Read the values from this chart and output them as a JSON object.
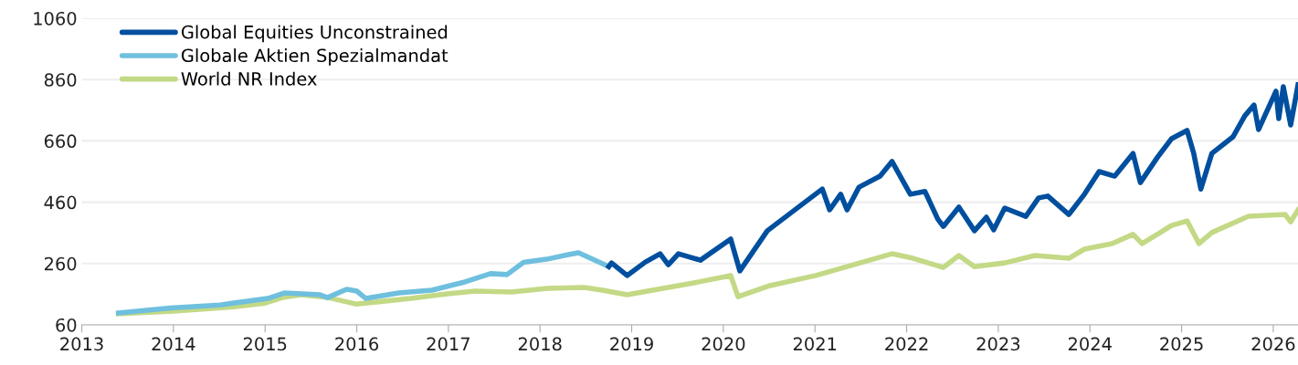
{
  "chart_data": {
    "type": "line",
    "xlim": [
      2013,
      2026.27
    ],
    "xticks": [
      2013,
      2014,
      2015,
      2016,
      2017,
      2018,
      2019,
      2020,
      2021,
      2022,
      2023,
      2024,
      2025,
      2026
    ],
    "ylim": [
      60,
      1060
    ],
    "yticks": [
      60,
      260,
      460,
      660,
      860,
      1060
    ],
    "grid": "y",
    "legend": "top left",
    "marker": "none",
    "line_style": "solid",
    "series": [
      {
        "name": "Global Equities Unconstrained",
        "color": "#004f9f",
        "x": [
          2018.75,
          2018.78,
          2018.95,
          2019.15,
          2019.31,
          2019.4,
          2019.51,
          2019.75,
          2020.08,
          2020.18,
          2020.48,
          2021.08,
          2021.16,
          2021.28,
          2021.35,
          2021.48,
          2021.71,
          2021.84,
          2022.04,
          2022.2,
          2022.34,
          2022.4,
          2022.57,
          2022.74,
          2022.87,
          2022.95,
          2023.07,
          2023.3,
          2023.44,
          2023.54,
          2023.77,
          2023.94,
          2024.1,
          2024.27,
          2024.47,
          2024.55,
          2024.74,
          2024.89,
          2025.06,
          2025.13,
          2025.21,
          2025.33,
          2025.56,
          2025.69,
          2025.79,
          2025.84,
          2026.03,
          2026.06,
          2026.11,
          2026.19,
          2026.27
        ],
        "values": [
          250,
          262,
          221,
          265,
          292,
          256,
          292,
          271,
          340,
          236,
          367,
          503,
          435,
          486,
          435,
          509,
          545,
          593,
          486,
          495,
          405,
          381,
          444,
          367,
          411,
          370,
          441,
          414,
          474,
          480,
          420,
          486,
          560,
          545,
          619,
          524,
          608,
          667,
          694,
          622,
          503,
          619,
          673,
          742,
          777,
          697,
          822,
          733,
          837,
          712,
          843
        ]
      },
      {
        "name": "Globale Aktien Spezialmandat",
        "color": "#6fbfde",
        "x": [
          2013.4,
          2013.97,
          2014.51,
          2015.03,
          2015.21,
          2015.6,
          2015.68,
          2015.89,
          2016.0,
          2016.1,
          2016.46,
          2016.82,
          2017.18,
          2017.46,
          2017.64,
          2017.82,
          2018.07,
          2018.31,
          2018.42,
          2018.75
        ],
        "values": [
          99,
          115,
          125,
          146,
          164,
          158,
          149,
          176,
          170,
          146,
          164,
          173,
          200,
          227,
          224,
          264,
          274,
          289,
          295,
          250
        ]
      },
      {
        "name": "World NR Index",
        "color": "#c3d985",
        "x": [
          2013.4,
          2014.0,
          2014.6,
          2015.0,
          2015.19,
          2015.39,
          2015.69,
          2015.99,
          2016.29,
          2016.59,
          2016.99,
          2017.29,
          2017.69,
          2018.08,
          2018.48,
          2018.68,
          2018.95,
          2019.68,
          2020.08,
          2020.16,
          2020.51,
          2021.01,
          2021.84,
          2022.07,
          2022.4,
          2022.57,
          2022.74,
          2023.07,
          2023.4,
          2023.77,
          2023.94,
          2024.24,
          2024.47,
          2024.57,
          2024.89,
          2025.06,
          2025.19,
          2025.33,
          2025.73,
          2026.13,
          2026.19,
          2026.27
        ],
        "values": [
          96,
          105,
          117,
          131,
          149,
          158,
          149,
          128,
          137,
          146,
          161,
          170,
          167,
          179,
          182,
          173,
          158,
          197,
          221,
          152,
          188,
          221,
          292,
          277,
          247,
          286,
          250,
          262,
          286,
          277,
          307,
          325,
          355,
          325,
          384,
          399,
          325,
          361,
          414,
          420,
          396,
          435
        ]
      }
    ]
  }
}
